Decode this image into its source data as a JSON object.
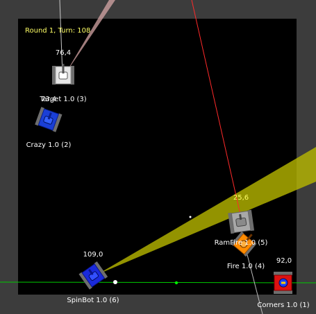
{
  "colors": {
    "background": "#3c3c3c",
    "arena": "#000000",
    "status_text": "#ffff66",
    "label_text": "#ffffff",
    "radar_beam": "#d4d400",
    "scan_line": "#ff2a2a",
    "gun_trace": "#ffb0b0",
    "green_line": "#00cc00"
  },
  "status": "Round 1, Turn: 108",
  "robots": [
    {
      "id": "target",
      "name": "Target 1.0 (3)",
      "energy": "76,4",
      "body_color": "#d8d8d8",
      "icon": "white-tank-icon"
    },
    {
      "id": "crazy",
      "name": "Crazy 1.0 (2)",
      "energy": "73,4",
      "body_color": "#1a3fd6",
      "icon": "blue-tank-icon"
    },
    {
      "id": "ramfire",
      "name": "RamFire 1.0 (5)",
      "energy": "25,6",
      "body_color": "#9a9a9a",
      "icon": "gray-tank-icon"
    },
    {
      "id": "fire",
      "name": "Fire 1.0 (4)",
      "energy": "",
      "body_color": "#ff8c00",
      "icon": "orange-tank-icon"
    },
    {
      "id": "spinbot",
      "name": "SpinBot 1.0 (6)",
      "energy": "109,0",
      "body_color": "#1a2adb",
      "icon": "blue-spinning-tank-icon"
    },
    {
      "id": "corners",
      "name": "Corners 1.0 (1)",
      "energy": "92,0",
      "body_color": "#dd1111",
      "icon": "red-tank-icon"
    }
  ]
}
